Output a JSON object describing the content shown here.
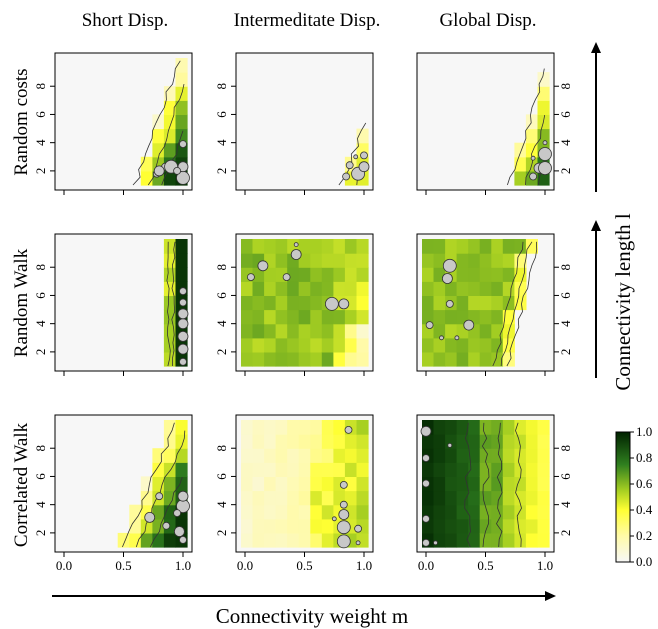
{
  "chart_data": {
    "type": "heatmap",
    "column_titles": [
      "Short Disp.",
      "Intermeditate Disp.",
      "Global Disp."
    ],
    "row_titles": [
      "Random costs",
      "Random Walk",
      "Correlated Walk"
    ],
    "xlabel": "Connectivity weight m",
    "ylabel": "Connectivity length l",
    "x_ticks": [
      "0.0",
      "0.5",
      "1.0"
    ],
    "y_ticks": [
      "2",
      "4",
      "6",
      "8"
    ],
    "xlim": [
      0,
      1
    ],
    "ylim": [
      1,
      10
    ],
    "colorbar": {
      "ticks": [
        "0.0",
        "0.2",
        "0.4",
        "0.6",
        "0.8",
        "1.0"
      ],
      "range": [
        0,
        1
      ],
      "colors": [
        "#f7f7f7",
        "#ffff66",
        "#7fbf1f",
        "#1f6f1f",
        "#002200"
      ]
    },
    "panels": [
      {
        "row": "Random costs",
        "column": "Short Disp.",
        "pattern": "corner",
        "threshold": 0.6,
        "slope": 1.1,
        "max_level": 0.95,
        "bubbles": [
          [
            0.78,
            1.8,
            2
          ],
          [
            0.85,
            2.3,
            2
          ],
          [
            0.9,
            2.3,
            4
          ],
          [
            0.8,
            2.0,
            3
          ],
          [
            1.0,
            1.5,
            4
          ],
          [
            1.0,
            2.3,
            3
          ],
          [
            0.95,
            2.0,
            2
          ],
          [
            1.0,
            3.9,
            2
          ]
        ]
      },
      {
        "row": "Random costs",
        "column": "Intermeditate Disp.",
        "pattern": "corner",
        "threshold": 0.8,
        "slope": 0.9,
        "max_level": 0.45,
        "bubbles": [
          [
            0.85,
            1.6,
            2
          ],
          [
            0.95,
            1.8,
            4
          ],
          [
            1.0,
            2.3,
            3
          ],
          [
            1.0,
            3.1,
            2
          ],
          [
            0.93,
            3.0,
            1
          ],
          [
            0.88,
            2.4,
            2
          ]
        ]
      },
      {
        "row": "Random costs",
        "column": "Global Disp.",
        "pattern": "corner",
        "threshold": 0.7,
        "slope": 1.2,
        "max_level": 0.95,
        "bubbles": [
          [
            0.9,
            1.6,
            2
          ],
          [
            0.95,
            2.2,
            3
          ],
          [
            1.0,
            2.2,
            4
          ],
          [
            1.0,
            3.2,
            4
          ],
          [
            0.9,
            2.9,
            1
          ],
          [
            1.0,
            4.0,
            1
          ]
        ]
      },
      {
        "row": "Random Walk",
        "column": "Short Disp.",
        "pattern": "column",
        "threshold": 0.88,
        "slope": 0.4,
        "max_level": 0.95,
        "bubbles": [
          [
            1.0,
            1.3,
            2
          ],
          [
            1.0,
            2.2,
            3
          ],
          [
            1.0,
            3.1,
            3
          ],
          [
            1.0,
            4.0,
            3
          ],
          [
            1.0,
            4.7,
            3
          ],
          [
            1.0,
            5.5,
            2
          ],
          [
            1.0,
            6.3,
            2
          ]
        ]
      },
      {
        "row": "Random Walk",
        "column": "Intermeditate Disp.",
        "pattern": "field",
        "threshold": 0,
        "slope": 0,
        "max_level": 0.65,
        "bubbles": [
          [
            0.05,
            7.3,
            2
          ],
          [
            0.15,
            8.1,
            3
          ],
          [
            0.43,
            8.9,
            3
          ],
          [
            0.43,
            9.6,
            1
          ],
          [
            0.35,
            7.3,
            2
          ],
          [
            0.73,
            5.4,
            4
          ],
          [
            0.83,
            5.4,
            3
          ]
        ]
      },
      {
        "row": "Random Walk",
        "column": "Global Disp.",
        "pattern": "field_edge",
        "threshold": 0.62,
        "slope": 0.5,
        "max_level": 0.65,
        "bubbles": [
          [
            0.2,
            8.1,
            4
          ],
          [
            0.18,
            7.2,
            3
          ],
          [
            0.2,
            5.4,
            2
          ],
          [
            0.03,
            3.9,
            2
          ],
          [
            0.13,
            3.0,
            1
          ],
          [
            0.26,
            3.0,
            1
          ],
          [
            0.36,
            3.9,
            3
          ]
        ]
      },
      {
        "row": "Correlated Walk",
        "column": "Short Disp.",
        "pattern": "corner_tall",
        "threshold": 0.5,
        "slope": 1.5,
        "max_level": 0.95,
        "bubbles": [
          [
            0.72,
            3.1,
            3
          ],
          [
            0.8,
            4.6,
            2
          ],
          [
            0.97,
            2.1,
            3
          ],
          [
            1.0,
            3.9,
            4
          ],
          [
            1.0,
            4.6,
            3
          ],
          [
            0.95,
            3.4,
            2
          ],
          [
            1.0,
            1.5,
            2
          ],
          [
            0.86,
            2.5,
            2
          ]
        ]
      },
      {
        "row": "Correlated Walk",
        "column": "Intermeditate Disp.",
        "pattern": "gradient_x",
        "threshold": 0.6,
        "slope": 0,
        "max_level": 0.55,
        "bubbles": [
          [
            0.83,
            1.4,
            4
          ],
          [
            0.83,
            2.4,
            4
          ],
          [
            0.83,
            3.3,
            3
          ],
          [
            0.83,
            4.0,
            2
          ],
          [
            0.83,
            5.4,
            2
          ],
          [
            0.95,
            2.3,
            2
          ],
          [
            0.75,
            3.0,
            1
          ],
          [
            0.87,
            9.3,
            2
          ],
          [
            0.95,
            1.3,
            1
          ]
        ]
      },
      {
        "row": "Correlated Walk",
        "column": "Global Disp.",
        "pattern": "dark_left",
        "threshold": 0.5,
        "slope": 0,
        "max_level": 1.0,
        "bubbles": [
          [
            0.0,
            9.2,
            3
          ],
          [
            0.0,
            7.3,
            2
          ],
          [
            0.0,
            5.5,
            2
          ],
          [
            0.0,
            3.0,
            2
          ],
          [
            0.0,
            1.3,
            2
          ],
          [
            0.08,
            1.3,
            1
          ],
          [
            0.2,
            8.2,
            1
          ]
        ]
      }
    ]
  }
}
